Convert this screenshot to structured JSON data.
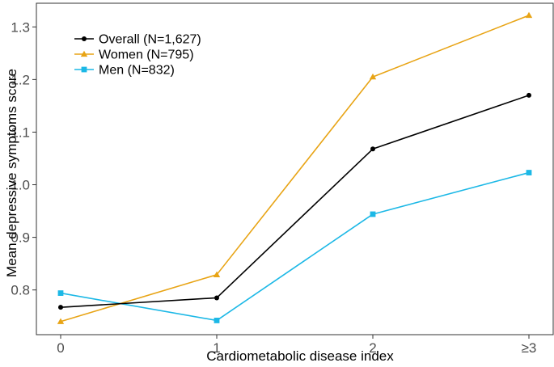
{
  "chart_data": {
    "type": "line",
    "title": "",
    "xlabel": "Cardiometabolic disease index",
    "ylabel": "Mean depressive symptoms score",
    "categories": [
      "0",
      "1",
      "2",
      "≥3"
    ],
    "ylim": [
      0.715,
      1.345
    ],
    "yticks": [
      "0.8",
      "0.9",
      "1.0",
      "1.1",
      "1.2",
      "1.3"
    ],
    "grid": false,
    "legend_position": "top-left",
    "series": [
      {
        "name": "Overall (N=1,627)",
        "marker": "circle",
        "color": "#000000",
        "values": [
          0.767,
          0.785,
          1.068,
          1.17
        ]
      },
      {
        "name": "Women (N=795)",
        "marker": "triangle",
        "color": "#E8A415",
        "values": [
          0.74,
          0.829,
          1.205,
          1.322
        ]
      },
      {
        "name": "Men (N=832)",
        "marker": "square",
        "color": "#1CB8E6",
        "values": [
          0.794,
          0.742,
          0.944,
          1.023
        ]
      }
    ]
  }
}
